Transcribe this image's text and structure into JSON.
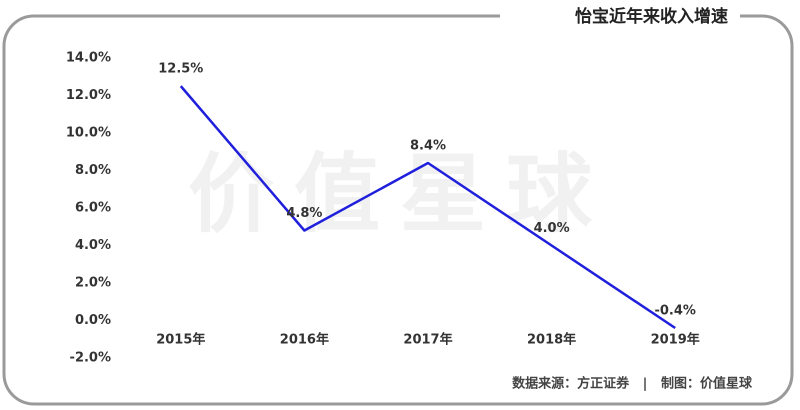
{
  "chart_data": {
    "type": "line",
    "title": "怡宝近年来收入增速",
    "watermark": "价值星球",
    "source": "数据来源：方正证券   |   制图：价值星球",
    "categories": [
      "2015年",
      "2016年",
      "2017年",
      "2018年",
      "2019年"
    ],
    "values": [
      12.5,
      4.8,
      8.4,
      4.0,
      -0.4
    ],
    "value_labels": [
      "12.5%",
      "4.8%",
      "8.4%",
      "4.0%",
      "-0.4%"
    ],
    "color": "#1f1fdc",
    "ylim": [
      -2,
      14
    ],
    "yticks": [
      {
        "value": -2,
        "label": "-2.0%"
      },
      {
        "value": 0,
        "label": "0.0%"
      },
      {
        "value": 2,
        "label": "2.0%"
      },
      {
        "value": 4,
        "label": "4.0%"
      },
      {
        "value": 6,
        "label": "6.0%"
      },
      {
        "value": 8,
        "label": "8.0%"
      },
      {
        "value": 10,
        "label": "10.0%"
      },
      {
        "value": 12,
        "label": "12.0%"
      },
      {
        "value": 14,
        "label": "14.0%"
      }
    ],
    "grid": false
  }
}
